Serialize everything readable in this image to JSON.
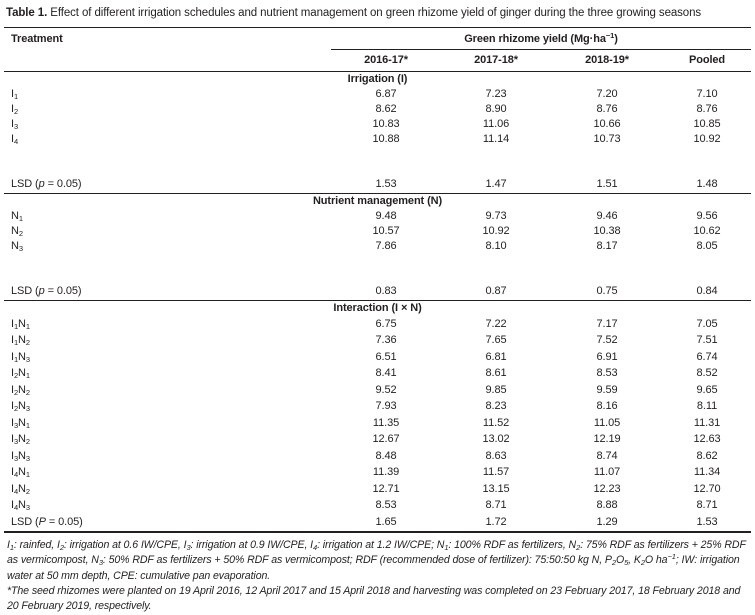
{
  "title": {
    "label": "Table 1.",
    "text": " Effect of different irrigation schedules and nutrient management on green rhizome yield of ginger during the three growing seasons"
  },
  "table": {
    "col_header_left": "Treatment",
    "col_group_header": "Green rhizome yield (Mg·ha^−1^)",
    "year_headers": [
      "2016-17*",
      "2017-18*",
      "2018-19*",
      "Pooled"
    ],
    "sections": [
      {
        "header": "Irrigation (I)",
        "rows": [
          {
            "label": "I~1~",
            "values": [
              "6.87",
              "7.23",
              "7.20",
              "7.10"
            ]
          },
          {
            "label": "I~2~",
            "values": [
              "8.62",
              "8.90",
              "8.76",
              "8.76"
            ]
          },
          {
            "label": "I~3~",
            "values": [
              "10.83",
              "11.06",
              "10.66",
              "10.85"
            ]
          },
          {
            "label": "I~4~",
            "values": [
              "10.88",
              "11.14",
              "10.73",
              "10.92"
            ]
          }
        ],
        "spacer": true,
        "lsd": {
          "label": "LSD (*p* = 0.05)",
          "values": [
            "1.53",
            "1.47",
            "1.51",
            "1.48"
          ]
        }
      },
      {
        "header": "Nutrient management (N)",
        "rows": [
          {
            "label": "N~1~",
            "values": [
              "9.48",
              "9.73",
              "9.46",
              "9.56"
            ]
          },
          {
            "label": "N~2~",
            "values": [
              "10.57",
              "10.92",
              "10.38",
              "10.62"
            ]
          },
          {
            "label": "N~3~",
            "values": [
              "7.86",
              "8.10",
              "8.17",
              "8.05"
            ]
          }
        ],
        "spacer": true,
        "lsd": {
          "label": "LSD (*p* = 0.05)",
          "values": [
            "0.83",
            "0.87",
            "0.75",
            "0.84"
          ]
        }
      },
      {
        "header": "Interaction (I × N)",
        "compact": true,
        "rows": [
          {
            "label": "I~1~N~1~",
            "values": [
              "6.75",
              "7.22",
              "7.17",
              "7.05"
            ]
          },
          {
            "label": "I~1~N~2~",
            "values": [
              "7.36",
              "7.65",
              "7.52",
              "7.51"
            ]
          },
          {
            "label": "I~1~N~3~",
            "values": [
              "6.51",
              "6.81",
              "6.91",
              "6.74"
            ]
          },
          {
            "label": "I~2~N~1~",
            "values": [
              "8.41",
              "8.61",
              "8.53",
              "8.52"
            ]
          },
          {
            "label": "I~2~N~2~",
            "values": [
              "9.52",
              "9.85",
              "9.59",
              "9.65"
            ]
          },
          {
            "label": "I~2~N~3~",
            "values": [
              "7.93",
              "8.23",
              "8.16",
              "8.11"
            ]
          },
          {
            "label": "I~3~N~1~",
            "values": [
              "11.35",
              "11.52",
              "11.05",
              "11.31"
            ]
          },
          {
            "label": "I~3~N~2~",
            "values": [
              "12.67",
              "13.02",
              "12.19",
              "12.63"
            ]
          },
          {
            "label": "I~3~N~3~",
            "values": [
              "8.48",
              "8.63",
              "8.74",
              "8.62"
            ]
          },
          {
            "label": "I~4~N~1~",
            "values": [
              "11.39",
              "11.57",
              "11.07",
              "11.34"
            ]
          },
          {
            "label": "I~4~N~2~",
            "values": [
              "12.71",
              "13.15",
              "12.23",
              "12.70"
            ]
          },
          {
            "label": "I~4~N~3~",
            "values": [
              "8.53",
              "8.71",
              "8.88",
              "8.71"
            ]
          }
        ],
        "spacer": false,
        "lsd": {
          "label": "LSD (*P* = 0.05)",
          "values": [
            "1.65",
            "1.72",
            "1.29",
            "1.53"
          ]
        }
      }
    ]
  },
  "footnotes": {
    "abbreviations": "I~1~: rainfed, I~2~: irrigation at 0.6 IW/CPE, I~3~: irrigation at 0.9 IW/CPE, I~4~: irrigation at 1.2 IW/CPE; N~1~: 100% RDF as fertilizers, N~2~: 75% RDF as fertilizers + 25% RDF as vermicompost, N~3~: 50% RDF as fertilizers + 50% RDF as vermicompost; RDF (recommended dose of fertilizer): 75:50:50 kg N, P~2~O~5~, K~2~O ha^−1^; IW: irrigation water at 50 mm depth, CPE: cumulative pan evaporation.",
    "planting_dates": "*The seed rhizomes were planted on 19 April 2016, 12 April 2017 and 15 April 2018 and harvesting was completed on 23 February 2017, 18 February 2018 and 20 February 2019, respectively."
  }
}
